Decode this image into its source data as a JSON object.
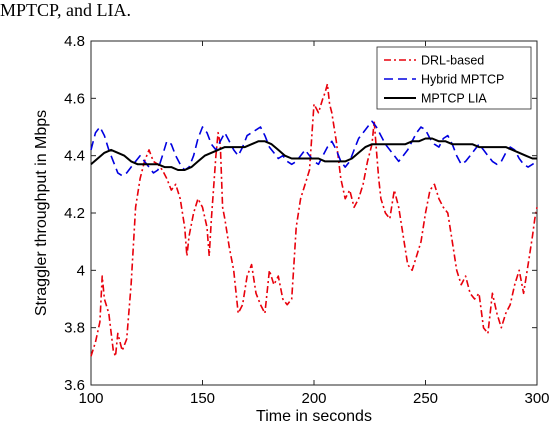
{
  "caption": "MPTCP, and LIA.",
  "chart_data": {
    "type": "line",
    "xlabel": "Time in seconds",
    "ylabel": "Straggler throughput in Mbps",
    "xlim": [
      100,
      300
    ],
    "ylim": [
      3.6,
      4.8
    ],
    "xticks": [
      "100",
      "150",
      "200",
      "250",
      "300"
    ],
    "yticks": [
      "3.6",
      "3.8",
      "4",
      "4.2",
      "4.4",
      "4.6",
      "4.8"
    ],
    "grid": false,
    "legend_position": "top-right",
    "series": [
      {
        "name": "DRL-based",
        "color": "#e8000b",
        "style": "dashdot",
        "x": [
          100,
          102,
          104,
          105,
          106,
          108,
          110,
          111,
          112,
          114,
          116,
          118,
          120,
          122,
          124,
          126,
          127,
          128,
          130,
          132,
          134,
          136,
          138,
          140,
          142,
          143,
          144,
          146,
          148,
          150,
          152,
          153,
          154,
          156,
          157,
          158,
          159,
          160,
          162,
          164,
          166,
          168,
          170,
          172,
          174,
          176,
          178,
          180,
          182,
          184,
          186,
          188,
          190,
          191,
          192,
          194,
          196,
          198,
          200,
          202,
          204,
          205,
          206,
          207,
          208,
          210,
          212,
          214,
          216,
          218,
          220,
          222,
          224,
          226,
          227,
          228,
          229,
          230,
          232,
          234,
          236,
          238,
          240,
          242,
          244,
          246,
          248,
          250,
          252,
          254,
          256,
          258,
          260,
          262,
          264,
          266,
          268,
          270,
          272,
          274,
          276,
          278,
          280,
          282,
          284,
          286,
          288,
          290,
          292,
          294,
          296,
          298,
          299,
          300
        ],
        "values": [
          3.7,
          3.75,
          3.82,
          3.98,
          3.9,
          3.85,
          3.72,
          3.7,
          3.78,
          3.72,
          3.76,
          3.95,
          4.22,
          4.32,
          4.38,
          4.42,
          4.4,
          4.38,
          4.37,
          4.35,
          4.32,
          4.28,
          4.3,
          4.25,
          4.15,
          4.05,
          4.12,
          4.2,
          4.25,
          4.22,
          4.15,
          4.05,
          4.18,
          4.4,
          4.48,
          4.44,
          4.22,
          4.18,
          4.08,
          4.0,
          3.85,
          3.88,
          3.98,
          4.02,
          3.92,
          3.88,
          3.85,
          4.0,
          3.95,
          3.98,
          3.9,
          3.88,
          3.9,
          4.02,
          4.15,
          4.25,
          4.3,
          4.35,
          4.58,
          4.55,
          4.6,
          4.62,
          4.65,
          4.58,
          4.55,
          4.45,
          4.32,
          4.25,
          4.28,
          4.22,
          4.25,
          4.3,
          4.38,
          4.44,
          4.52,
          4.42,
          4.32,
          4.25,
          4.2,
          4.18,
          4.28,
          4.22,
          4.12,
          4.02,
          4.0,
          4.05,
          4.1,
          4.2,
          4.28,
          4.3,
          4.25,
          4.22,
          4.2,
          4.1,
          4.0,
          3.95,
          3.98,
          3.92,
          3.9,
          3.92,
          3.8,
          3.78,
          3.92,
          3.85,
          3.8,
          3.85,
          3.88,
          3.95,
          4.0,
          3.92,
          4.02,
          4.12,
          4.18,
          4.22
        ]
      },
      {
        "name": "Hybrid MPTCP",
        "color": "#0000e0",
        "style": "dashed",
        "x": [
          100,
          102,
          104,
          106,
          108,
          110,
          112,
          114,
          116,
          118,
          120,
          122,
          124,
          126,
          128,
          130,
          132,
          134,
          136,
          138,
          140,
          142,
          144,
          146,
          148,
          150,
          152,
          154,
          156,
          158,
          160,
          162,
          164,
          166,
          168,
          170,
          172,
          174,
          176,
          178,
          180,
          182,
          184,
          186,
          188,
          190,
          192,
          194,
          196,
          198,
          200,
          202,
          204,
          206,
          208,
          210,
          212,
          214,
          216,
          218,
          220,
          222,
          224,
          226,
          228,
          230,
          232,
          234,
          236,
          238,
          240,
          242,
          244,
          246,
          248,
          250,
          252,
          254,
          256,
          258,
          260,
          262,
          264,
          266,
          268,
          270,
          272,
          274,
          276,
          278,
          280,
          282,
          284,
          286,
          288,
          290,
          292,
          294,
          296,
          298,
          300
        ],
        "values": [
          4.42,
          4.48,
          4.5,
          4.47,
          4.42,
          4.38,
          4.34,
          4.33,
          4.34,
          4.36,
          4.38,
          4.4,
          4.38,
          4.36,
          4.34,
          4.35,
          4.4,
          4.45,
          4.44,
          4.4,
          4.37,
          4.35,
          4.36,
          4.4,
          4.46,
          4.5,
          4.48,
          4.44,
          4.42,
          4.45,
          4.48,
          4.45,
          4.42,
          4.4,
          4.43,
          4.47,
          4.48,
          4.49,
          4.5,
          4.47,
          4.43,
          4.41,
          4.39,
          4.4,
          4.38,
          4.37,
          4.38,
          4.4,
          4.42,
          4.4,
          4.38,
          4.37,
          4.4,
          4.43,
          4.45,
          4.42,
          4.38,
          4.36,
          4.38,
          4.42,
          4.46,
          4.48,
          4.5,
          4.52,
          4.5,
          4.47,
          4.44,
          4.42,
          4.4,
          4.38,
          4.4,
          4.42,
          4.45,
          4.48,
          4.5,
          4.49,
          4.46,
          4.44,
          4.43,
          4.46,
          4.47,
          4.44,
          4.4,
          4.37,
          4.38,
          4.4,
          4.42,
          4.44,
          4.42,
          4.4,
          4.38,
          4.37,
          4.38,
          4.41,
          4.43,
          4.42,
          4.39,
          4.37,
          4.36,
          4.37,
          4.38
        ]
      },
      {
        "name": "MPTCP LIA",
        "color": "#000000",
        "style": "solid",
        "x": [
          100,
          103,
          106,
          109,
          112,
          115,
          118,
          121,
          124,
          127,
          130,
          133,
          136,
          139,
          142,
          145,
          148,
          151,
          154,
          157,
          160,
          163,
          166,
          169,
          172,
          175,
          178,
          181,
          184,
          187,
          190,
          193,
          196,
          199,
          202,
          205,
          208,
          211,
          214,
          217,
          220,
          223,
          226,
          229,
          232,
          235,
          238,
          241,
          244,
          247,
          250,
          253,
          256,
          259,
          262,
          265,
          268,
          271,
          274,
          277,
          280,
          283,
          286,
          289,
          292,
          295,
          298,
          300
        ],
        "values": [
          4.37,
          4.39,
          4.41,
          4.42,
          4.41,
          4.4,
          4.38,
          4.37,
          4.37,
          4.37,
          4.37,
          4.36,
          4.36,
          4.35,
          4.35,
          4.36,
          4.38,
          4.4,
          4.41,
          4.42,
          4.43,
          4.43,
          4.43,
          4.43,
          4.44,
          4.45,
          4.45,
          4.44,
          4.42,
          4.4,
          4.39,
          4.39,
          4.39,
          4.39,
          4.39,
          4.38,
          4.38,
          4.38,
          4.38,
          4.39,
          4.41,
          4.43,
          4.44,
          4.44,
          4.44,
          4.44,
          4.44,
          4.44,
          4.45,
          4.45,
          4.46,
          4.46,
          4.45,
          4.45,
          4.44,
          4.44,
          4.44,
          4.44,
          4.43,
          4.43,
          4.43,
          4.43,
          4.43,
          4.42,
          4.41,
          4.4,
          4.39,
          4.39
        ]
      }
    ]
  }
}
